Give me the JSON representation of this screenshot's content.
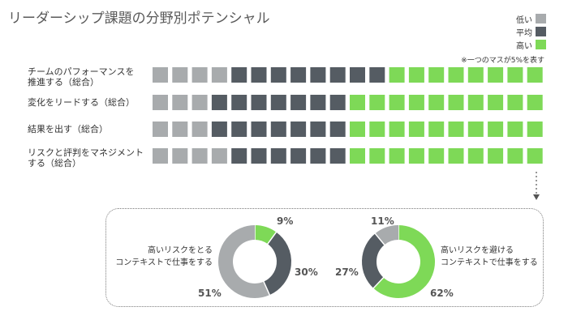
{
  "title": "リーダーシップ課題の分野別ポテンシャル",
  "legend": [
    {
      "label": "低い",
      "color": "#a8abad"
    },
    {
      "label": "平均",
      "color": "#555c63"
    },
    {
      "label": "高い",
      "color": "#7ed957"
    }
  ],
  "note": "※一つのマスが5%を表す",
  "chart_data": [
    {
      "type": "bar",
      "unit_per_square_percent": 5,
      "categories": [
        "チームのパフォーマンスを推進する（総合）",
        "変化をリードする（総合）",
        "結果を出す（総合）",
        "リスクと評判をマネジメントする（総合）"
      ],
      "category_lines": [
        [
          "チームのパフォーマンスを",
          "推進する（総合）"
        ],
        [
          "変化をリードする（総合）"
        ],
        [
          "結果を出す（総合）"
        ],
        [
          "リスクと評判をマネジメント",
          "する（総合）"
        ]
      ],
      "series": [
        {
          "name": "低い",
          "values": [
            20,
            15,
            15,
            20
          ]
        },
        {
          "name": "平均",
          "values": [
            40,
            35,
            35,
            30
          ]
        },
        {
          "name": "高い",
          "values": [
            40,
            50,
            50,
            50
          ]
        }
      ]
    },
    {
      "type": "pie",
      "caption": [
        "高いリスクをとる",
        "コンテキストで仕事をする"
      ],
      "slices": [
        {
          "name": "高い",
          "value": 9,
          "label": "9%"
        },
        {
          "name": "平均",
          "value": 30,
          "label": "30%"
        },
        {
          "name": "低い",
          "value": 51,
          "label": "51%"
        }
      ]
    },
    {
      "type": "pie",
      "caption": [
        "高いリスクを避ける",
        "コンテキストで仕事をする"
      ],
      "slices": [
        {
          "name": "高い",
          "value": 62,
          "label": "62%"
        },
        {
          "name": "平均",
          "value": 27,
          "label": "27%"
        },
        {
          "name": "低い",
          "value": 11,
          "label": "11%"
        }
      ]
    }
  ]
}
